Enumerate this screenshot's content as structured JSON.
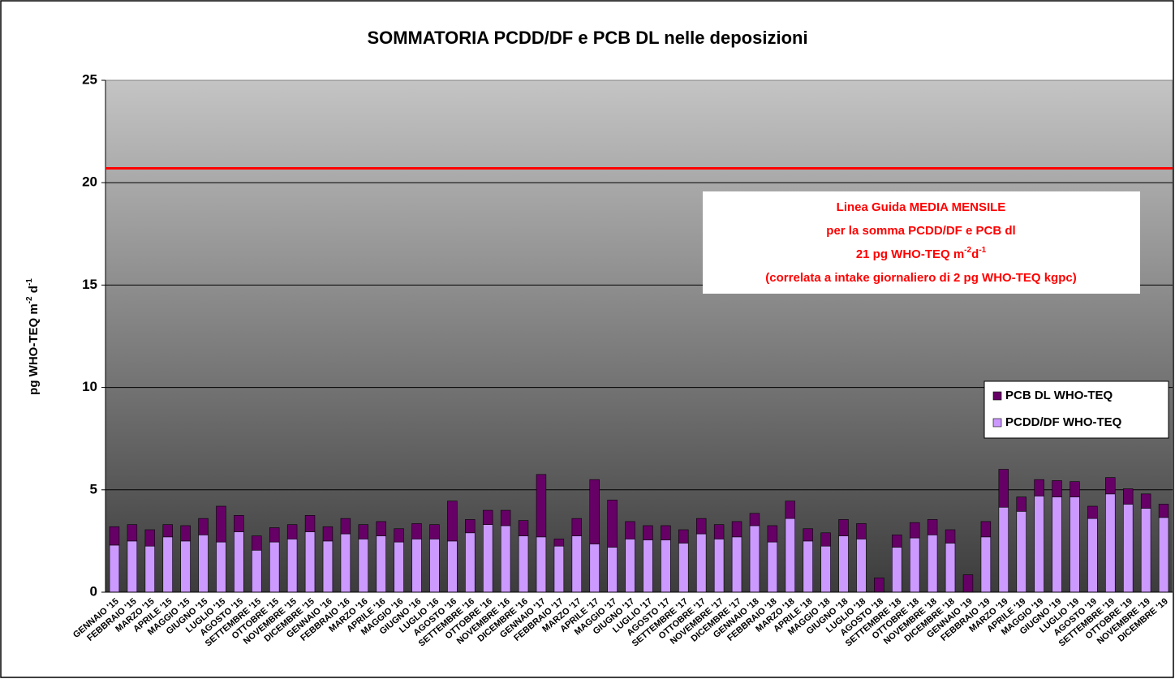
{
  "chart_data": {
    "type": "stacked_bar",
    "title": "SOMMATORIA PCDD/DF e PCB DL nelle deposizioni",
    "y_label": [
      "pg WHO-TEQ m",
      "-2",
      " d",
      "-1"
    ],
    "categories": [
      "GENNAIO '15",
      "FEBBRAIO '15",
      "MARZO '15",
      "APRILE '15",
      "MAGGIO '15",
      "GIUGNO '15",
      "LUGLIO '15",
      "AGOSTO '15",
      "SETTEMBRE '15",
      "OTTOBRE '15",
      "NOVEMBRE '15",
      "DICEMBRE '15",
      "GENNAIO '16",
      "FEBBRAIO '16",
      "MARZO '16",
      "APRILE '16",
      "MAGGIO '16",
      "GIUGNO '16",
      "LUGLIO '16",
      "AGOSTO '16",
      "SETTEMBRE '16",
      "OTTOBRE '16",
      "NOVEMBRE '16",
      "DICEMBRE '16",
      "GENNAIO '17",
      "FEBBRAIO '17",
      "MARZO '17",
      "APRILE '17",
      "MAGGIO '17",
      "GIUGNO '17",
      "LUGLIO '17",
      "AGOSTO '17",
      "SETTEMBRE '17",
      "OTTOBRE '17",
      "NOVEMBRE '17",
      "DICEMBRE '17",
      "GENNAIO '18",
      "FEBBRAIO '18",
      "MARZO '18",
      "APRILE '18",
      "MAGGIO '18",
      "GIUGNO '18",
      "LUGLIO '18",
      "AGOSTO '18",
      "SETTEMBRE '18",
      "OTTOBRE '18",
      "NOVEMBRE '18",
      "DICEMBRE '18",
      "GENNAIO '19",
      "FEBBRAIO '19",
      "MARZO '19",
      "APRILE '19",
      "MAGGIO '19",
      "GIUGNO '19",
      "LUGLIO '19",
      "AGOSTO '19",
      "SETTEMBRE '19",
      "OTTOBRE '19",
      "NOVEMBRE '19",
      "DICEMBRE '19"
    ],
    "series": [
      {
        "name": "PCDD/DF WHO-TEQ",
        "color": "#cc99ff",
        "values": [
          2.3,
          2.5,
          2.25,
          2.7,
          2.5,
          2.8,
          2.45,
          2.95,
          2.05,
          2.45,
          2.6,
          2.95,
          2.5,
          2.85,
          2.6,
          2.75,
          2.45,
          2.6,
          2.6,
          2.5,
          2.9,
          3.3,
          3.25,
          2.75,
          2.7,
          2.25,
          2.75,
          2.35,
          2.2,
          2.6,
          2.55,
          2.55,
          2.4,
          2.85,
          2.6,
          2.7,
          3.25,
          2.45,
          3.6,
          2.5,
          2.25,
          2.75,
          2.6,
          0,
          2.2,
          2.65,
          2.8,
          2.4,
          0,
          2.7,
          4.15,
          3.95,
          4.7,
          4.65,
          4.65,
          3.6,
          4.8,
          4.3,
          4.1,
          3.65
        ]
      },
      {
        "name": "PCB DL WHO-TEQ",
        "color": "#660066",
        "values": [
          0.9,
          0.8,
          0.8,
          0.6,
          0.75,
          0.8,
          1.75,
          0.8,
          0.7,
          0.7,
          0.7,
          0.8,
          0.7,
          0.75,
          0.7,
          0.7,
          0.65,
          0.75,
          0.7,
          1.95,
          0.65,
          0.7,
          0.75,
          0.75,
          3.05,
          0.35,
          0.85,
          3.15,
          2.3,
          0.85,
          0.7,
          0.7,
          0.65,
          0.75,
          0.7,
          0.75,
          0.6,
          0.8,
          0.85,
          0.6,
          0.65,
          0.8,
          0.75,
          0.7,
          0.6,
          0.75,
          0.75,
          0.65,
          0.85,
          0.75,
          1.85,
          0.7,
          0.8,
          0.8,
          0.75,
          0.6,
          0.8,
          0.75,
          0.7,
          0.65
        ]
      }
    ],
    "reference_line": {
      "value": 20.7,
      "color": "#ff0000"
    },
    "annotation": {
      "lines": [
        [
          "Linea Guida MEDIA MENSILE"
        ],
        [
          "per la somma PCDD/DF e PCB dl"
        ],
        [
          "21 pg WHO-TEQ m",
          "-2",
          "d",
          "-1"
        ],
        [
          "(correlata a intake giornaliero di 2 pg WHO-TEQ kgpc)"
        ]
      ],
      "color": "#ff0000"
    },
    "ylim": [
      0,
      25
    ],
    "yticks": [
      0,
      5,
      10,
      15,
      20,
      25
    ],
    "grid": true,
    "legend": "right"
  }
}
